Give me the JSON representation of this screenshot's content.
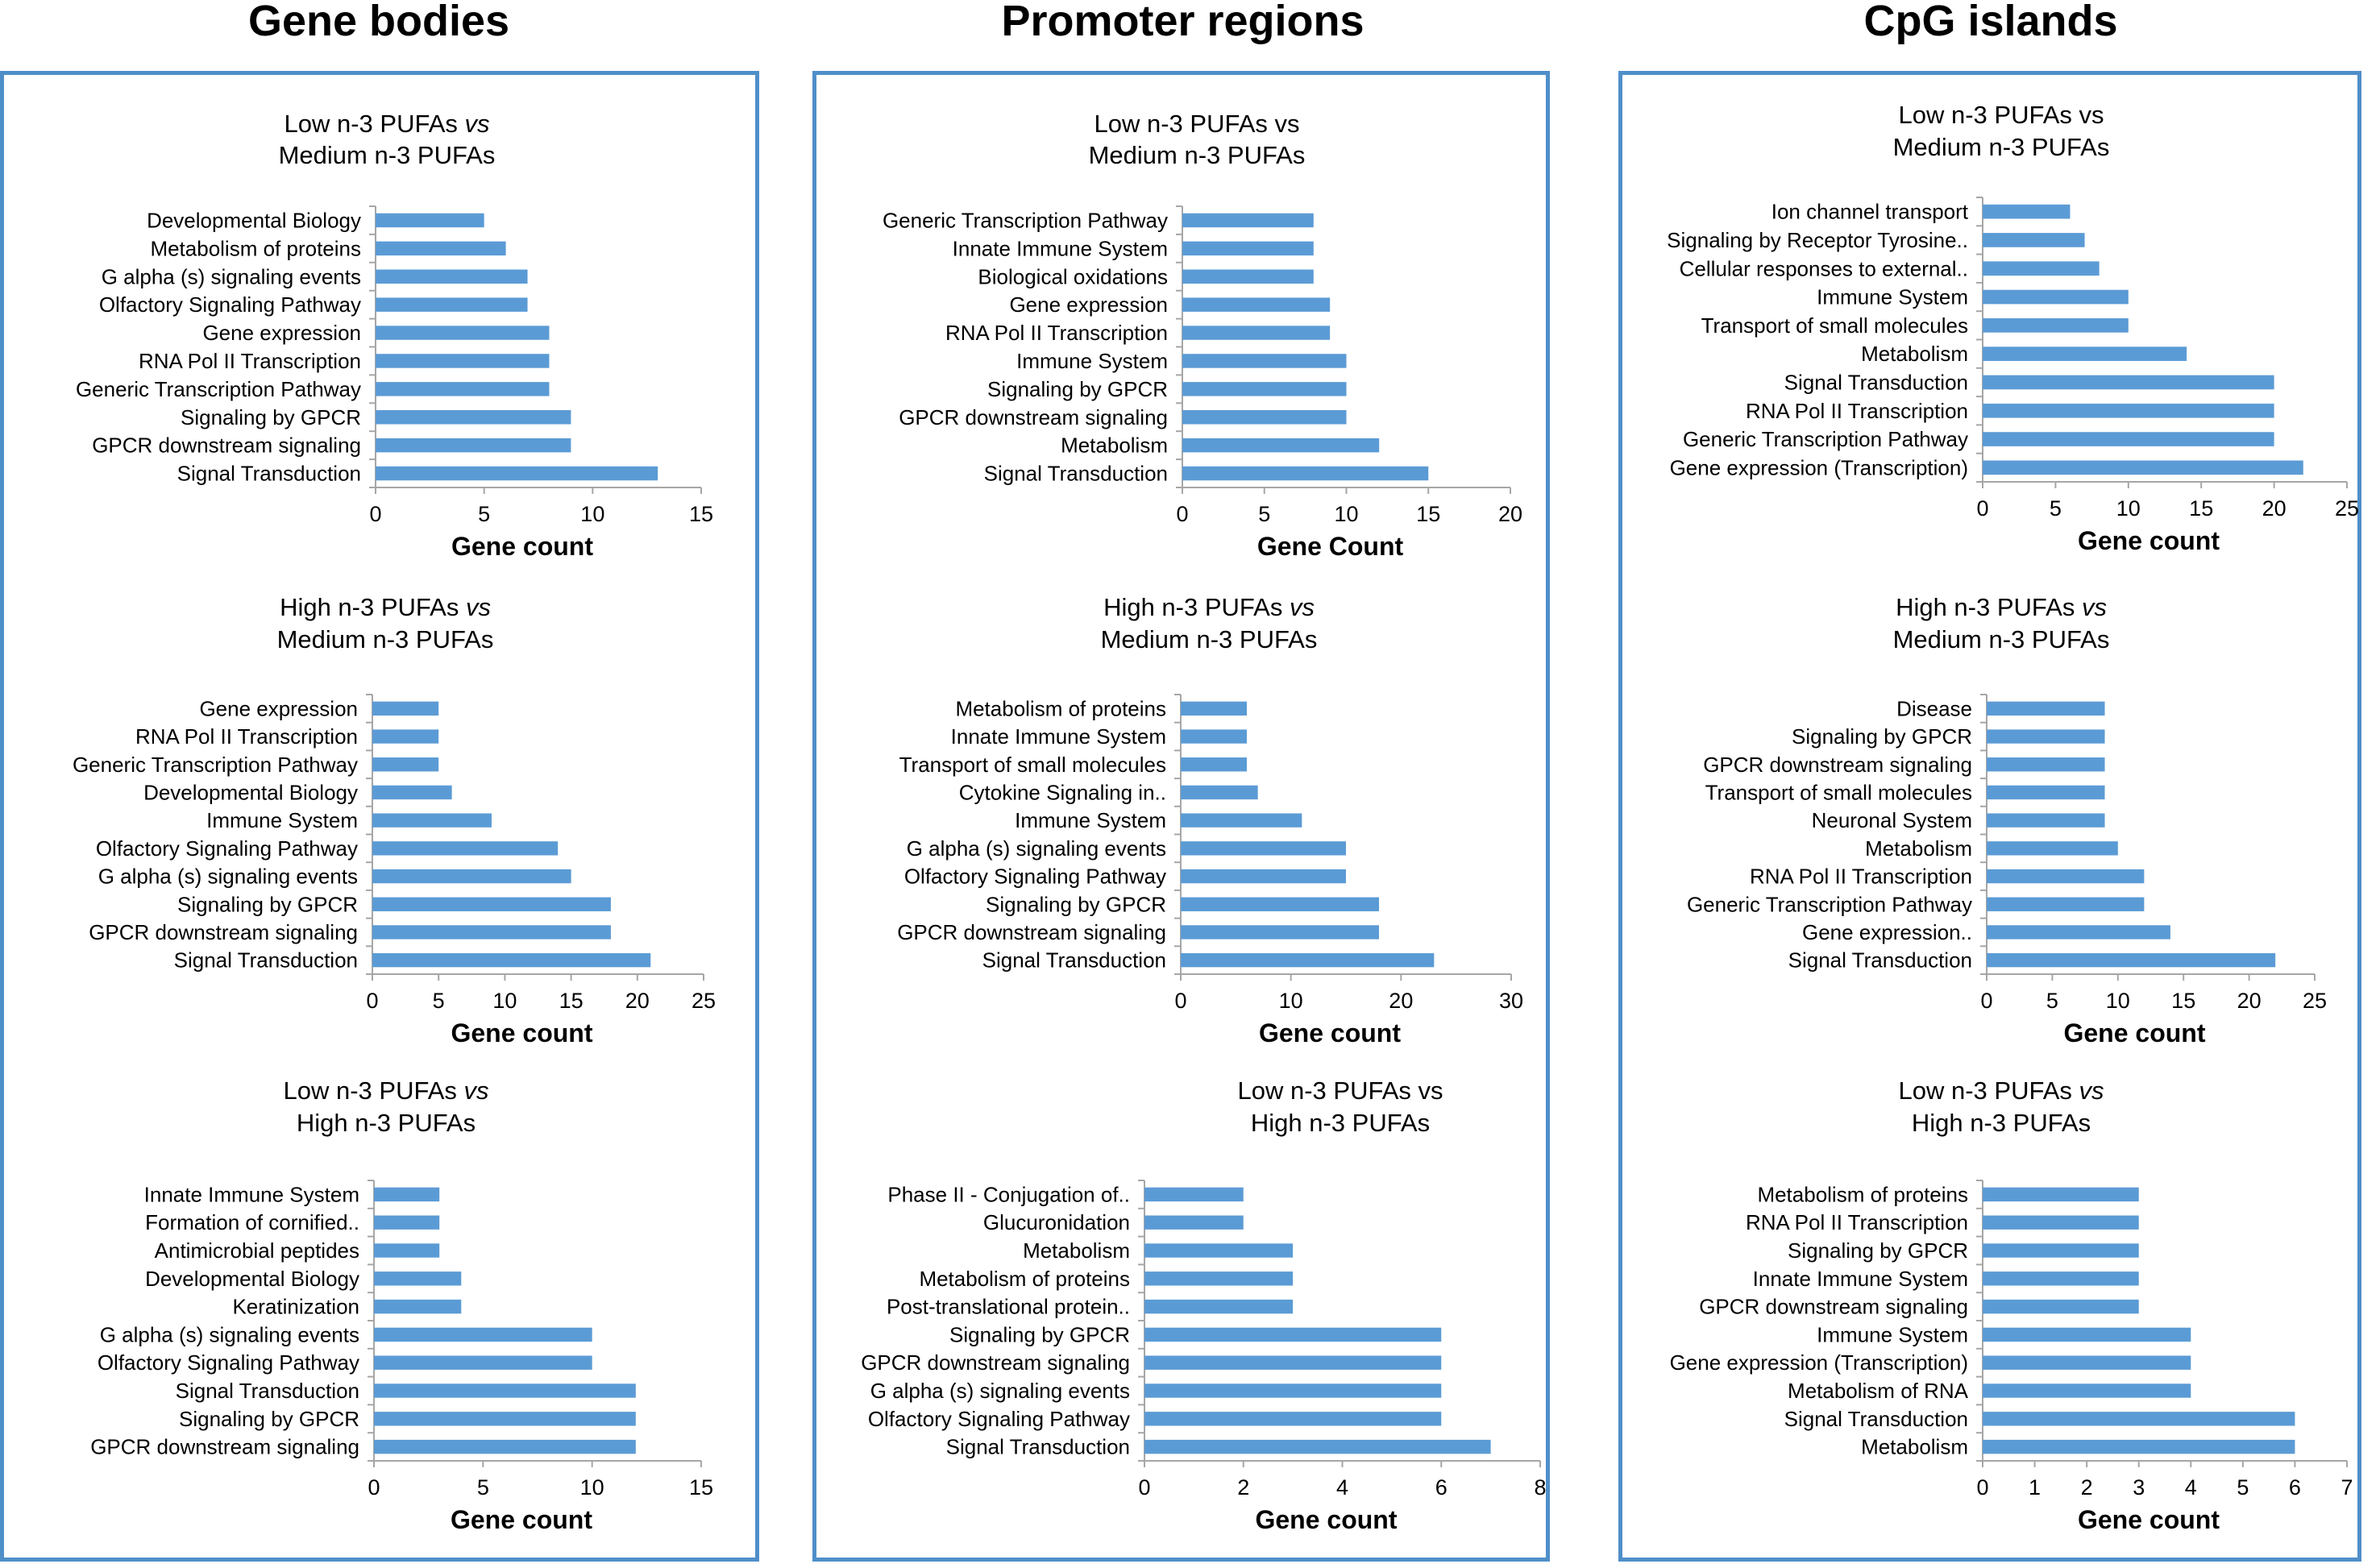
{
  "columns": [
    "Gene bodies",
    "Promoter regions",
    "CpG islands"
  ],
  "colors": {
    "bar": "#5b9bd5",
    "axis": "#a6a6a6",
    "frame": "#4f8fc9"
  },
  "chart_data": [
    {
      "type": "bar",
      "orientation": "horizontal",
      "column": 0,
      "title_line1": "Low n-3 PUFAs ",
      "title_vs": "vs",
      "title_line2": "Medium n-3 PUFAs",
      "categories": [
        "Developmental Biology",
        "Metabolism of proteins",
        "G alpha (s) signaling events",
        "Olfactory Signaling Pathway",
        "Gene expression",
        "RNA Pol II Transcription",
        "Generic Transcription Pathway",
        "Signaling by GPCR",
        "GPCR downstream signaling",
        "Signal Transduction"
      ],
      "values": [
        5,
        6,
        7,
        7,
        8,
        8,
        8,
        9,
        9,
        13
      ],
      "xlim": [
        0,
        15
      ],
      "xticks": [
        0,
        5,
        10,
        15
      ],
      "xlabel": "Gene count"
    },
    {
      "type": "bar",
      "orientation": "horizontal",
      "column": 0,
      "title_line1": "High n-3 PUFAs ",
      "title_vs": "vs",
      "title_line2": "Medium n-3 PUFAs",
      "categories": [
        "Gene expression",
        "RNA Pol II Transcription",
        "Generic Transcription Pathway",
        "Developmental Biology",
        "Immune System",
        "Olfactory Signaling Pathway",
        "G alpha (s) signaling events",
        "Signaling by GPCR",
        "GPCR downstream signaling",
        "Signal Transduction"
      ],
      "values": [
        5,
        5,
        5,
        6,
        9,
        14,
        15,
        18,
        18,
        21
      ],
      "xlim": [
        0,
        25
      ],
      "xticks": [
        0,
        5,
        10,
        15,
        20,
        25
      ],
      "xlabel": "Gene count"
    },
    {
      "type": "bar",
      "orientation": "horizontal",
      "column": 0,
      "title_line1": "Low n-3 PUFAs ",
      "title_vs": "vs",
      "title_line2": "High n-3 PUFAs",
      "categories": [
        "Innate Immune System",
        "Formation of cornified..",
        "Antimicrobial peptides",
        "Developmental Biology",
        "Keratinization",
        "G alpha (s) signaling events",
        "Olfactory Signaling Pathway",
        "Signal Transduction",
        "Signaling by GPCR",
        "GPCR downstream signaling"
      ],
      "values": [
        3,
        3,
        3,
        4,
        4,
        10,
        10,
        12,
        12,
        12
      ],
      "xlim": [
        0,
        15
      ],
      "xticks": [
        0,
        5,
        10,
        15
      ],
      "xlabel": "Gene count"
    },
    {
      "type": "bar",
      "orientation": "horizontal",
      "column": 1,
      "title_line1": "Low n-3 PUFAs vs",
      "title_vs": "",
      "title_line2": "Medium n-3 PUFAs",
      "categories": [
        "Generic Transcription Pathway",
        "Innate Immune System",
        "Biological oxidations",
        "Gene expression",
        "RNA Pol II Transcription",
        "Immune System",
        "Signaling by GPCR",
        "GPCR downstream signaling",
        "Metabolism",
        "Signal Transduction"
      ],
      "values": [
        8,
        8,
        8,
        9,
        9,
        10,
        10,
        10,
        12,
        15
      ],
      "xlim": [
        0,
        20
      ],
      "xticks": [
        0,
        5,
        10,
        15,
        20
      ],
      "xlabel": "Gene Count"
    },
    {
      "type": "bar",
      "orientation": "horizontal",
      "column": 1,
      "title_line1": "High n-3 PUFAs ",
      "title_vs": "vs",
      "title_line2": "Medium n-3 PUFAs",
      "categories": [
        "Metabolism of proteins",
        "Innate Immune System",
        "Transport of small molecules",
        "Cytokine Signaling in..",
        "Immune System",
        "G alpha (s) signaling events",
        "Olfactory Signaling Pathway",
        "Signaling by GPCR",
        "GPCR downstream signaling",
        "Signal Transduction"
      ],
      "values": [
        6,
        6,
        6,
        7,
        11,
        15,
        15,
        18,
        18,
        23
      ],
      "xlim": [
        0,
        30
      ],
      "xticks": [
        0,
        10,
        20,
        30
      ],
      "xlabel": "Gene count"
    },
    {
      "type": "bar",
      "orientation": "horizontal",
      "column": 1,
      "title_line1": "Low n-3 PUFAs vs",
      "title_vs": "",
      "title_line2": "High n-3 PUFAs",
      "categories": [
        "Phase II - Conjugation of..",
        "Glucuronidation",
        "Metabolism",
        "Metabolism of proteins",
        "Post-translational protein..",
        "Signaling by GPCR",
        "GPCR downstream signaling",
        "G alpha (s) signaling events",
        "Olfactory Signaling Pathway",
        "Signal Transduction"
      ],
      "values": [
        2,
        2,
        3,
        3,
        3,
        6,
        6,
        6,
        6,
        7
      ],
      "xlim": [
        0,
        8
      ],
      "xticks": [
        0,
        2,
        4,
        6,
        8
      ],
      "xlabel": "Gene count"
    },
    {
      "type": "bar",
      "orientation": "horizontal",
      "column": 2,
      "title_line1": "Low n-3 PUFAs vs",
      "title_vs": "",
      "title_line2": "Medium n-3 PUFAs",
      "categories": [
        "Ion channel transport",
        "Signaling by Receptor Tyrosine..",
        "Cellular responses to external..",
        "Immune System",
        "Transport of small molecules",
        "Metabolism",
        "Signal Transduction",
        "RNA Pol II Transcription",
        "Generic Transcription Pathway",
        "Gene expression (Transcription)"
      ],
      "values": [
        6,
        7,
        8,
        10,
        10,
        14,
        20,
        20,
        20,
        22
      ],
      "xlim": [
        0,
        25
      ],
      "xticks": [
        0,
        5,
        10,
        15,
        20,
        25
      ],
      "xlabel": "Gene count"
    },
    {
      "type": "bar",
      "orientation": "horizontal",
      "column": 2,
      "title_line1": "High n-3 PUFAs ",
      "title_vs": "vs",
      "title_line2": "Medium n-3 PUFAs",
      "categories": [
        "Disease",
        "Signaling by GPCR",
        "GPCR downstream signaling",
        "Transport of small molecules",
        "Neuronal System",
        "Metabolism",
        "RNA Pol II Transcription",
        "Generic Transcription Pathway",
        "Gene expression..",
        "Signal Transduction"
      ],
      "values": [
        9,
        9,
        9,
        9,
        9,
        10,
        12,
        12,
        14,
        22
      ],
      "xlim": [
        0,
        25
      ],
      "xticks": [
        0,
        5,
        10,
        15,
        20,
        25
      ],
      "xlabel": "Gene count"
    },
    {
      "type": "bar",
      "orientation": "horizontal",
      "column": 2,
      "title_line1": "Low n-3 PUFAs ",
      "title_vs": "vs",
      "title_line2": "High n-3 PUFAs",
      "categories": [
        "Metabolism of proteins",
        "RNA Pol II Transcription",
        "Signaling by GPCR",
        "Innate Immune System",
        "GPCR downstream signaling",
        "Immune System",
        "Gene expression (Transcription)",
        "Metabolism of RNA",
        "Signal Transduction",
        "Metabolism"
      ],
      "values": [
        3,
        3,
        3,
        3,
        3,
        4,
        4,
        4,
        6,
        6
      ],
      "xlim": [
        0,
        7
      ],
      "xticks": [
        0,
        1,
        2,
        3,
        4,
        5,
        6,
        7
      ],
      "xlabel": "Gene count"
    }
  ]
}
